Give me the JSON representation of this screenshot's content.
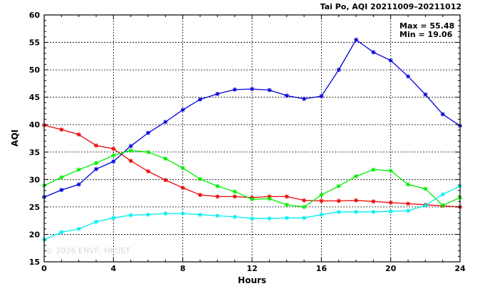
{
  "chart_data": {
    "type": "line",
    "title": "Tai Po, AQI 20211009–20211012",
    "xlabel": "Hours",
    "ylabel": "AQI",
    "xlim": [
      0,
      24
    ],
    "ylim": [
      15,
      60
    ],
    "xticks": [
      0,
      4,
      8,
      12,
      16,
      20,
      24
    ],
    "yticks": [
      15,
      20,
      25,
      30,
      35,
      40,
      45,
      50,
      55,
      60
    ],
    "xtick_labels": [
      "0",
      "4",
      "8",
      "12",
      "16",
      "20",
      "24"
    ],
    "ytick_labels": [
      "15",
      "20",
      "25",
      "30",
      "35",
      "40",
      "45",
      "50",
      "55",
      "60"
    ],
    "grid": true,
    "annotations": {
      "max": "Max = 55.48",
      "min": "Min = 19.06"
    },
    "watermark": "© 2026  ENVF, HKUST",
    "x": [
      0,
      1,
      2,
      3,
      4,
      5,
      6,
      7,
      8,
      9,
      10,
      11,
      12,
      13,
      14,
      15,
      16,
      17,
      18,
      19,
      20,
      21,
      22,
      23,
      24
    ],
    "series": [
      {
        "color": "#0000dd",
        "values": [
          26.8,
          28.1,
          29.1,
          31.9,
          33.3,
          36.1,
          38.5,
          40.5,
          42.7,
          44.6,
          45.6,
          46.4,
          46.5,
          46.3,
          45.3,
          44.7,
          45.2,
          50.0,
          55.48,
          53.2,
          51.7,
          48.8,
          45.5,
          41.9,
          39.8
        ]
      },
      {
        "color": "#ee0000",
        "values": [
          39.9,
          39.1,
          38.2,
          36.2,
          35.6,
          33.4,
          31.5,
          29.9,
          28.5,
          27.2,
          26.9,
          26.9,
          26.7,
          26.9,
          26.9,
          26.2,
          26.1,
          26.1,
          26.2,
          26.0,
          25.8,
          25.6,
          25.4,
          25.2,
          25.0
        ]
      },
      {
        "color": "#00ee00",
        "values": [
          28.9,
          30.4,
          31.8,
          33.0,
          34.4,
          35.3,
          35.0,
          33.8,
          32.1,
          30.1,
          28.8,
          27.8,
          26.4,
          26.5,
          25.4,
          25.0,
          27.2,
          28.8,
          30.6,
          31.8,
          31.6,
          29.1,
          28.3,
          25.3,
          26.7
        ]
      },
      {
        "color": "#00eeee",
        "values": [
          19.06,
          20.4,
          21.0,
          22.3,
          23.0,
          23.5,
          23.6,
          23.8,
          23.8,
          23.6,
          23.4,
          23.2,
          22.9,
          22.9,
          23.0,
          23.0,
          23.6,
          24.1,
          24.1,
          24.1,
          24.2,
          24.3,
          25.3,
          27.3,
          28.8
        ]
      }
    ]
  }
}
